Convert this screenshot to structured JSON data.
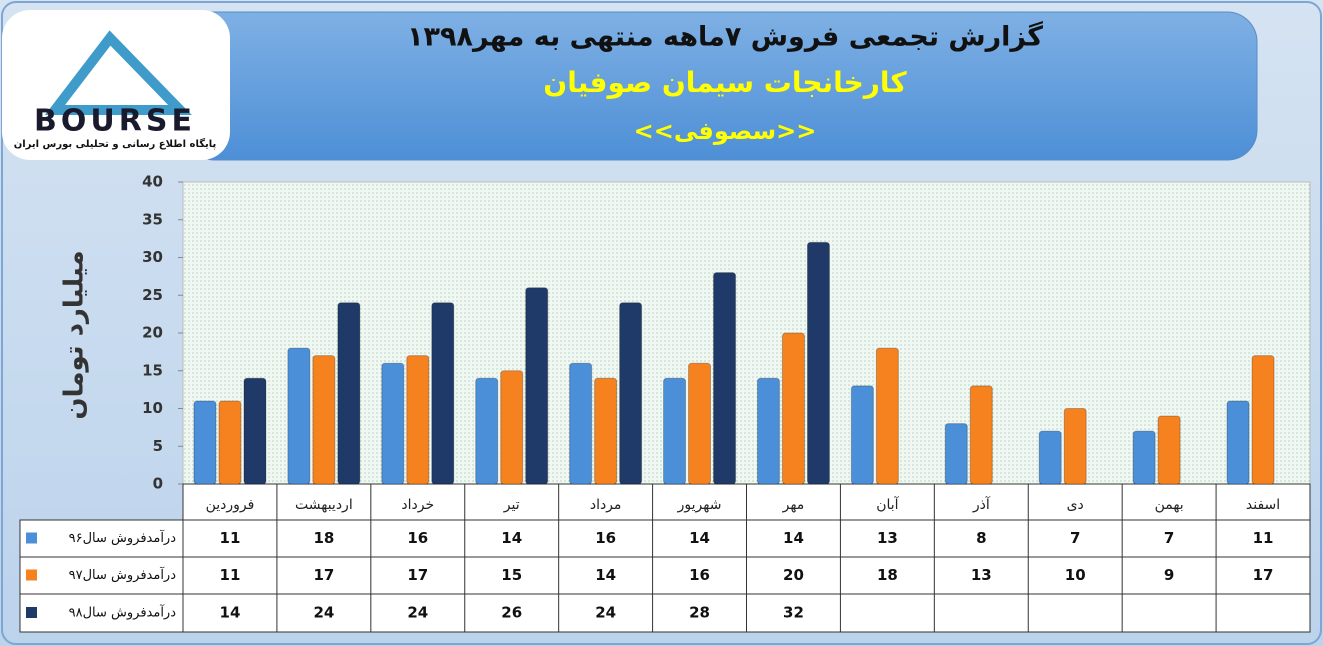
{
  "chart_data": {
    "type": "bar",
    "title": "گزارش تجمعی فروش ۷ماهه منتهی به مهر۱۳۹۸",
    "subtitle": "کارخانجات سیمان صوفیان",
    "symbol": "<<سصوفی>>",
    "logo": {
      "name": "BOURSE",
      "tagline": "پایگاه اطلاع رسانی و تحلیلی بورس ایران"
    },
    "y_label": "میلیارد تومان",
    "categories": [
      "فروردین",
      "اردیبهشت",
      "خرداد",
      "تیر",
      "مرداد",
      "شهریور",
      "مهر",
      "آبان",
      "آذر",
      "دی",
      "بهمن",
      "اسفند"
    ],
    "series": [
      {
        "name": "درآمدفروش سال۹۶",
        "color": "#4a8fd8",
        "values": [
          11,
          18,
          16,
          14,
          16,
          14,
          14,
          13,
          8,
          7,
          7,
          11
        ]
      },
      {
        "name": "درآمدفروش سال۹۷",
        "color": "#f5821f",
        "values": [
          11,
          17,
          17,
          15,
          14,
          16,
          20,
          18,
          13,
          10,
          9,
          17
        ]
      },
      {
        "name": "درآمدفروش سال۹۸",
        "color": "#1f3a68",
        "values": [
          14,
          24,
          24,
          26,
          24,
          28,
          32,
          null,
          null,
          null,
          null,
          null
        ]
      }
    ],
    "ylim": [
      0,
      40
    ],
    "yticks": [
      0,
      5,
      10,
      15,
      20,
      25,
      30,
      35,
      40
    ],
    "grid": false
  }
}
